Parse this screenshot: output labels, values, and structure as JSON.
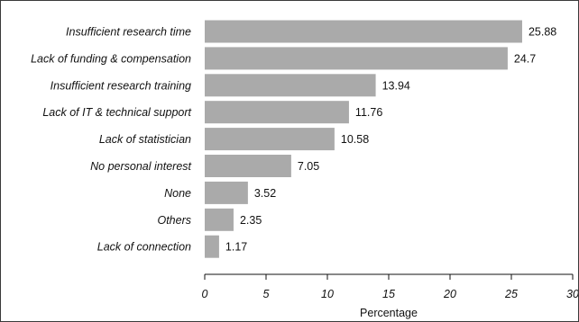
{
  "chart_data": {
    "type": "bar",
    "orientation": "horizontal",
    "categories": [
      "Insufficient research time",
      "Lack of funding & compensation",
      "Insufficient research training",
      "Lack of IT & technical support",
      "Lack of statistician",
      "No personal interest",
      "None",
      "Others",
      "Lack of connection"
    ],
    "values": [
      25.88,
      24.7,
      13.94,
      11.76,
      10.58,
      7.05,
      3.52,
      2.35,
      1.17
    ],
    "value_labels": [
      "25.88",
      "24.7",
      "13.94",
      "11.76",
      "10.58",
      "7.05",
      "3.52",
      "2.35",
      "1.17"
    ],
    "xlabel": "Percentage",
    "xlim": [
      0,
      30
    ],
    "xticks": [
      0,
      5,
      10,
      15,
      20,
      25,
      30
    ],
    "xtick_labels": [
      "0",
      "5",
      "10",
      "15",
      "20",
      "25",
      "30"
    ],
    "grid": false,
    "bar_color": "#aaaaaa"
  }
}
